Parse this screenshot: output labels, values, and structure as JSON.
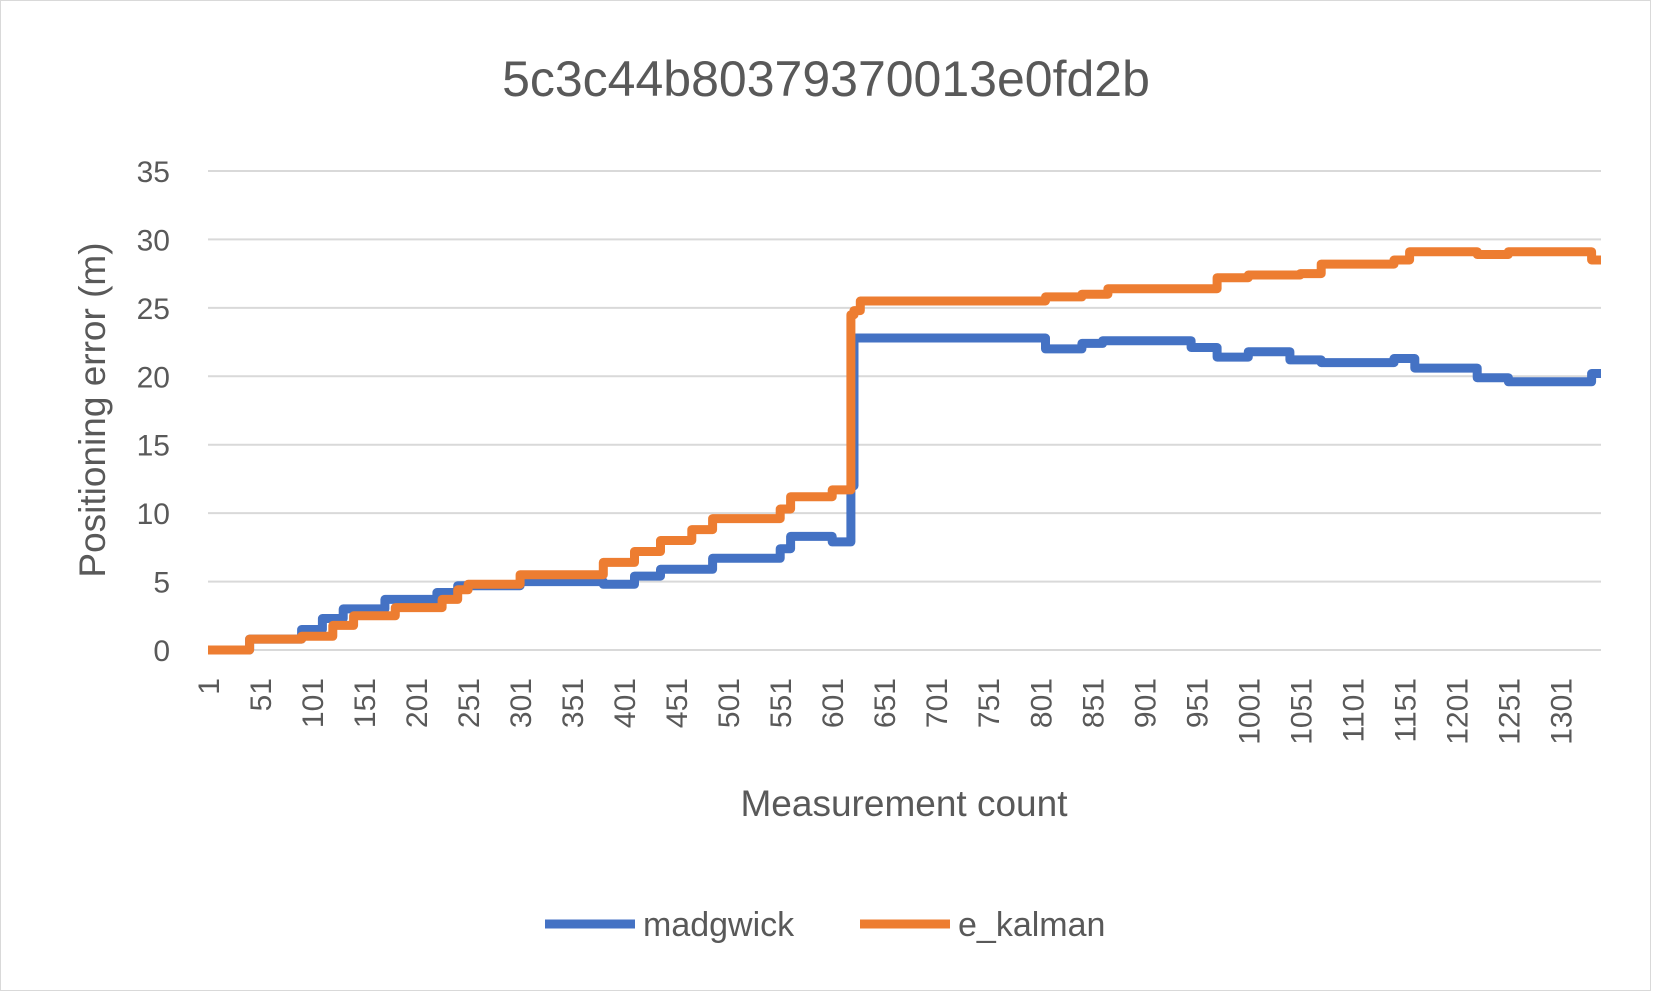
{
  "chart_data": {
    "type": "line",
    "title": "5c3c44b80379370013e0fd2b",
    "xlabel": "Measurement count",
    "ylabel": "Positioning error (m)",
    "ylim": [
      0,
      35
    ],
    "yticks": [
      0,
      5,
      10,
      15,
      20,
      25,
      30,
      35
    ],
    "xlim": [
      1,
      1340
    ],
    "xticks": [
      1,
      51,
      101,
      151,
      201,
      251,
      301,
      351,
      401,
      451,
      501,
      551,
      601,
      651,
      701,
      751,
      801,
      851,
      901,
      951,
      1001,
      1051,
      1101,
      1151,
      1201,
      1251,
      1301
    ],
    "grid": true,
    "legend_position": "bottom",
    "series": [
      {
        "name": "madgwick",
        "color": "#4472c4",
        "x": [
          1,
          41,
          91,
          111,
          131,
          171,
          221,
          241,
          301,
          381,
          411,
          436,
          486,
          551,
          561,
          601,
          619,
          622,
          626,
          806,
          841,
          861,
          946,
          971,
          1001,
          1041,
          1071,
          1141,
          1161,
          1221,
          1241,
          1251,
          1331,
          1340
        ],
        "values": [
          0,
          0.8,
          1.5,
          2.3,
          3.0,
          3.7,
          4.2,
          4.7,
          5.0,
          4.8,
          5.4,
          5.9,
          6.7,
          7.4,
          8.3,
          7.9,
          12.0,
          22.8,
          22.8,
          22.0,
          22.4,
          22.6,
          22.1,
          21.4,
          21.8,
          21.2,
          21.0,
          21.3,
          20.6,
          19.9,
          19.9,
          19.6,
          20.2,
          20.2
        ],
        "y_kind": "step"
      },
      {
        "name": "e_kalman",
        "color": "#ed7d31",
        "x": [
          1,
          41,
          91,
          121,
          141,
          181,
          226,
          241,
          251,
          301,
          381,
          411,
          436,
          466,
          486,
          551,
          561,
          601,
          619,
          622,
          628,
          806,
          841,
          866,
          971,
          1001,
          1051,
          1071,
          1141,
          1156,
          1221,
          1251,
          1331,
          1340
        ],
        "values": [
          0,
          0.8,
          1.0,
          1.8,
          2.5,
          3.1,
          3.7,
          4.4,
          4.8,
          5.5,
          6.4,
          7.2,
          8.0,
          8.8,
          9.6,
          10.3,
          11.2,
          11.7,
          24.5,
          24.8,
          25.5,
          25.8,
          26.0,
          26.4,
          27.2,
          27.4,
          27.5,
          28.2,
          28.5,
          29.1,
          28.9,
          29.1,
          28.5,
          28.5
        ],
        "y_kind": "step"
      }
    ]
  }
}
